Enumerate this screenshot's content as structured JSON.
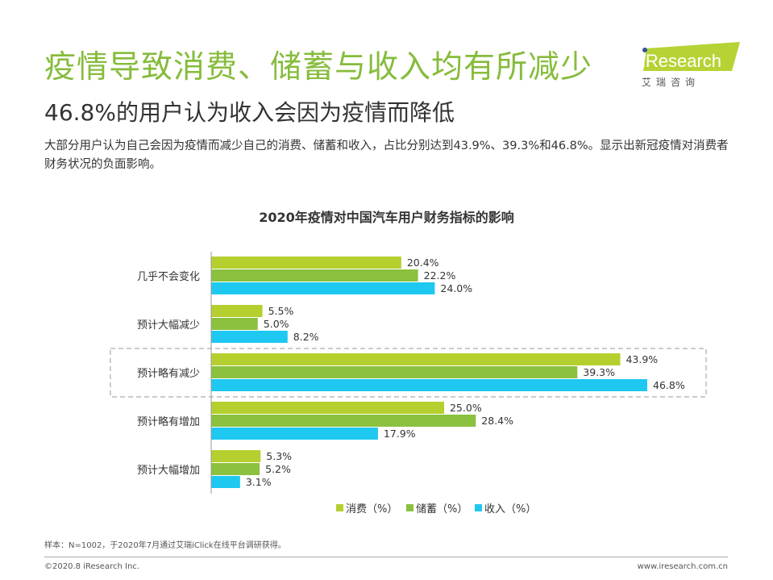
{
  "header": {
    "title": "疫情导致消费、储蓄与收入均有所减少",
    "subtitle": "46.8%的用户认为收入会因为疫情而降低",
    "description": "大部分用户认为自己会因为疫情而减少自己的消费、储蓄和收入，占比分别达到43.9%、39.3%和46.8%。显示出新冠疫情对消费者财务状况的负面影响。"
  },
  "logo": {
    "brand": "iResearch",
    "cn": "艾 瑞 咨 询",
    "color": "#b5d334"
  },
  "chart_data": {
    "type": "bar",
    "orientation": "horizontal",
    "title": "2020年疫情对中国汽车用户财务指标的影响",
    "categories": [
      "几乎不会变化",
      "预计大幅减少",
      "预计略有减少",
      "预计略有增加",
      "预计大幅增加"
    ],
    "highlighted_category": "预计略有减少",
    "series": [
      {
        "name": "消费（%）",
        "color": "#b5cf2e",
        "values": [
          20.4,
          5.5,
          43.9,
          25.0,
          5.3
        ]
      },
      {
        "name": "储蓄（%）",
        "color": "#8bc13f",
        "values": [
          22.2,
          5.0,
          39.3,
          28.4,
          5.2
        ]
      },
      {
        "name": "收入（%）",
        "color": "#1ec8f0",
        "values": [
          24.0,
          8.2,
          46.8,
          17.9,
          3.1
        ]
      }
    ],
    "xlim": [
      0,
      50
    ],
    "legend": "bottom-right",
    "grid": false
  },
  "footer": {
    "note": "样本：N=1002，于2020年7月通过艾瑞iClick在线平台调研获得。",
    "copyright": "©2020.8 iResearch Inc.",
    "website": "www.iresearch.com.cn"
  }
}
